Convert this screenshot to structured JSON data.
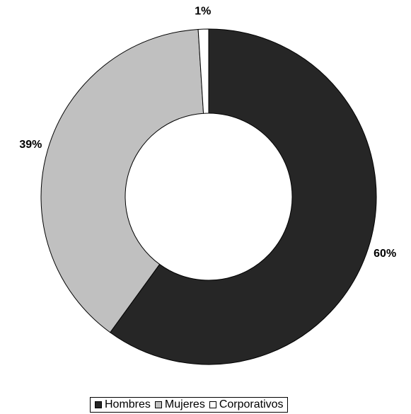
{
  "chart_data": {
    "type": "pie",
    "donut": true,
    "title": "",
    "categories": [
      "Hombres",
      "Mujeres",
      "Corporativos"
    ],
    "values": [
      60,
      39,
      1
    ],
    "labels": [
      "60%",
      "39%",
      "1%"
    ],
    "colors": [
      "#262626",
      "#c0c0c0",
      "#ffffff"
    ],
    "start_angle_deg": 0,
    "direction": "clockwise",
    "legend_position": "bottom"
  }
}
